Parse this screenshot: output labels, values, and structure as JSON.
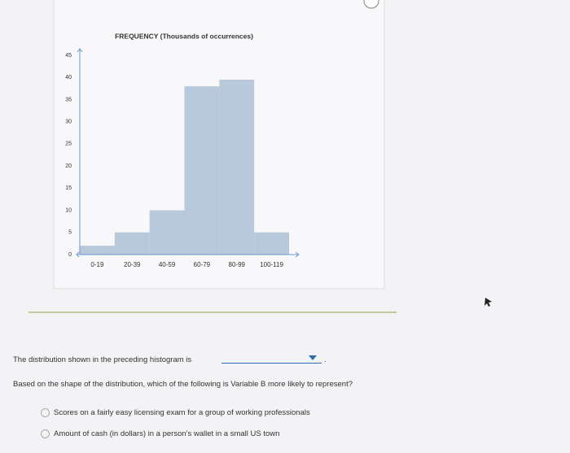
{
  "chart_data": {
    "type": "bar",
    "title": "FREQUENCY (Thousands of occurrences)",
    "categories": [
      "0-19",
      "20-39",
      "40-59",
      "60-79",
      "80-99",
      "100-119"
    ],
    "values": [
      2,
      5,
      10,
      38,
      39.5,
      5
    ],
    "color": "#b8c9dc",
    "ylim": [
      0,
      45
    ],
    "yticks": [
      0,
      5,
      10,
      15,
      20,
      25,
      30,
      35,
      40,
      45
    ]
  },
  "question": {
    "prompt": "The distribution shown in the preceding histogram is",
    "prompt_end": ".",
    "question2": "Based on the shape of the distribution, which of the following is Variable B more likely to represent?",
    "options": [
      "Scores on a fairly easy licensing exam for a group of working professionals",
      "Amount of cash (in dollars) in a person's wallet in a small US town"
    ]
  }
}
